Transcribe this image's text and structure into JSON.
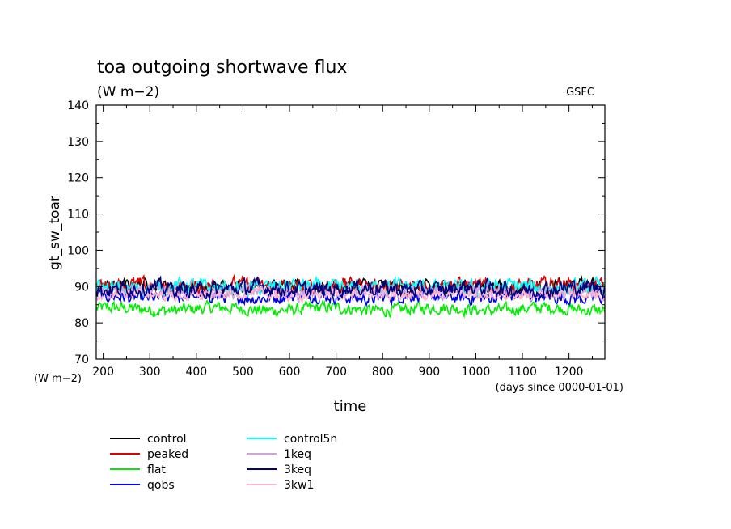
{
  "chart_data": {
    "type": "line",
    "title": "toa outgoing shortwave flux",
    "subtitle": "(W m−2)",
    "credit": "GSFC",
    "xlabel": "time",
    "xunit": "(days since 0000-01-01)",
    "ylabel": "gt_sw_toar",
    "yunit": "(W m−2)",
    "xlim": [
      185,
      1277
    ],
    "ylim": [
      70,
      140
    ],
    "xticks": [
      200,
      300,
      400,
      500,
      600,
      700,
      800,
      900,
      1000,
      1100,
      1200
    ],
    "yticks": [
      70,
      80,
      90,
      100,
      110,
      120,
      130,
      140
    ],
    "grid": false,
    "legend_position": "bottom-left",
    "series": [
      {
        "name": "control",
        "color": "#000000",
        "mean": 90.0,
        "amp": 1.6
      },
      {
        "name": "peaked",
        "color": "#e00000",
        "mean": 90.2,
        "amp": 1.7
      },
      {
        "name": "flat",
        "color": "#00ee00",
        "mean": 83.8,
        "amp": 1.4
      },
      {
        "name": "qobs",
        "color": "#0000ee",
        "mean": 87.2,
        "amp": 1.5
      },
      {
        "name": "control5n",
        "color": "#00ffff",
        "mean": 89.8,
        "amp": 1.8
      },
      {
        "name": "1keq",
        "color": "#d0a0e0",
        "mean": 88.6,
        "amp": 1.6
      },
      {
        "name": "3keq",
        "color": "#000080",
        "mean": 89.4,
        "amp": 1.8
      },
      {
        "name": "3kw1",
        "color": "#ffb6c8",
        "mean": 87.8,
        "amp": 1.2
      }
    ]
  }
}
